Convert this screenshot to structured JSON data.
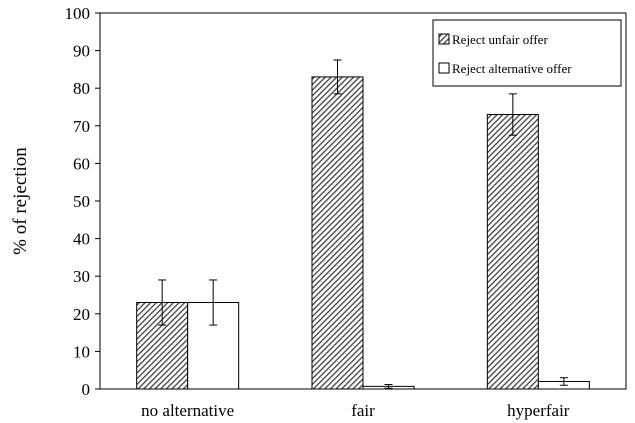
{
  "chart_data": {
    "type": "bar",
    "title": "",
    "xlabel": "",
    "ylabel": "% of rejection",
    "ylim": [
      0,
      100
    ],
    "yticks": [
      0,
      10,
      20,
      30,
      40,
      50,
      60,
      70,
      80,
      90,
      100
    ],
    "grid": false,
    "legend_position": "top-right",
    "categories": [
      "no alternative",
      "fair",
      "hyperfair"
    ],
    "series": [
      {
        "name": "Reject unfair offer",
        "pattern": "diagonal-hatch",
        "values": [
          23,
          83,
          73
        ],
        "error": [
          6,
          4.5,
          5.5
        ]
      },
      {
        "name": "Reject alternative offer",
        "pattern": "white",
        "values": [
          23,
          0.7,
          2
        ],
        "error": [
          6,
          0.5,
          1
        ]
      }
    ]
  }
}
